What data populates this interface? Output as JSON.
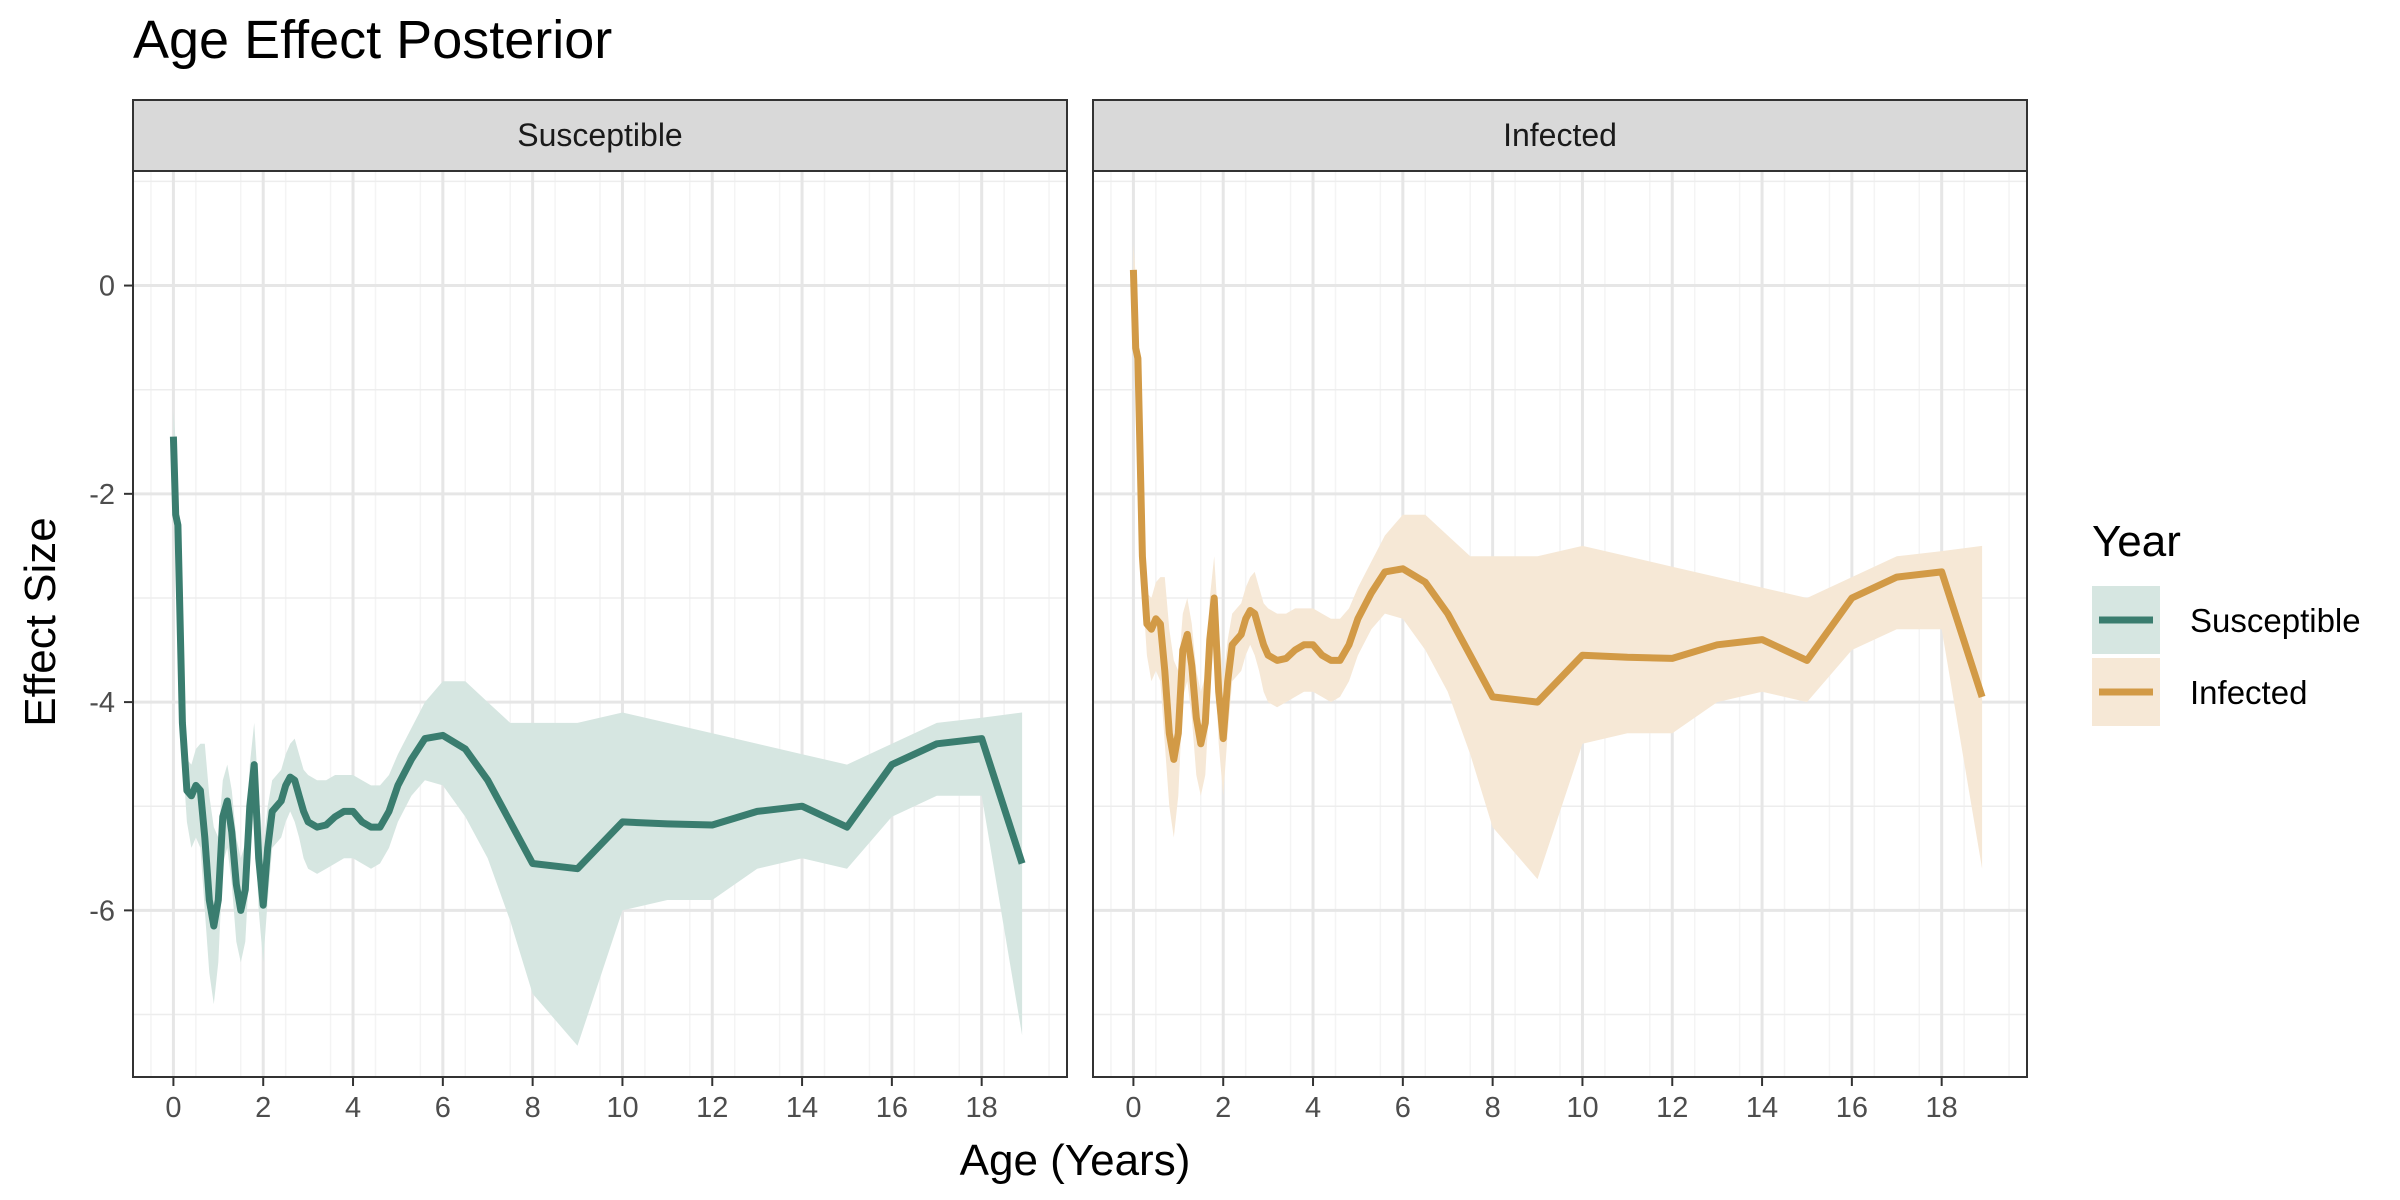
{
  "chart_data": {
    "type": "line",
    "title": "Age Effect Posterior",
    "xlabel": "Age (Years)",
    "ylabel": "Effect Size",
    "xlim": [
      -0.9,
      19.9
    ],
    "ylim": [
      -7.6,
      1.1
    ],
    "x_ticks": [
      "0",
      "2",
      "4",
      "6",
      "8",
      "10",
      "12",
      "14",
      "16",
      "18"
    ],
    "y_ticks": [
      "0",
      "-2",
      "-4",
      "-6"
    ],
    "grid": true,
    "legend": {
      "title": "Year",
      "position": "right",
      "entries": [
        {
          "label": "Susceptible",
          "color": "#3a7d6f"
        },
        {
          "label": "Infected",
          "color": "#d29a46"
        }
      ]
    },
    "panels": [
      {
        "strip": "Susceptible",
        "color": "#3a7d6f",
        "band_color": "#d6e6e1",
        "series": {
          "name": "Susceptible",
          "x": [
            0,
            0.05,
            0.1,
            0.2,
            0.3,
            0.4,
            0.5,
            0.6,
            0.7,
            0.8,
            0.9,
            1.0,
            1.1,
            1.2,
            1.3,
            1.4,
            1.5,
            1.6,
            1.7,
            1.8,
            1.9,
            2.0,
            2.1,
            2.2,
            2.3,
            2.4,
            2.5,
            2.6,
            2.7,
            2.8,
            2.9,
            3.0,
            3.2,
            3.4,
            3.6,
            3.8,
            4.0,
            4.2,
            4.4,
            4.6,
            4.8,
            5.0,
            5.3,
            5.6,
            6.0,
            6.5,
            7.0,
            7.5,
            8.0,
            9.0,
            10.0,
            11.0,
            12.0,
            13.0,
            14.0,
            15.0,
            16.0,
            17.0,
            18.0,
            18.9
          ],
          "y": [
            -1.45,
            -2.2,
            -2.3,
            -4.2,
            -4.85,
            -4.9,
            -4.8,
            -4.85,
            -5.3,
            -5.9,
            -6.15,
            -5.9,
            -5.1,
            -4.95,
            -5.25,
            -5.75,
            -6.0,
            -5.8,
            -5.0,
            -4.6,
            -5.5,
            -5.95,
            -5.4,
            -5.05,
            -5.0,
            -4.95,
            -4.8,
            -4.72,
            -4.75,
            -4.9,
            -5.05,
            -5.15,
            -5.2,
            -5.18,
            -5.1,
            -5.05,
            -5.05,
            -5.15,
            -5.2,
            -5.2,
            -5.05,
            -4.8,
            -4.55,
            -4.35,
            -4.32,
            -4.45,
            -4.75,
            -5.15,
            -5.55,
            -5.6,
            -5.15,
            -5.17,
            -5.18,
            -5.05,
            -5.0,
            -5.2,
            -4.6,
            -4.4,
            -4.35,
            -5.55
          ],
          "band_x": [
            0,
            0.05,
            0.1,
            0.2,
            0.3,
            0.4,
            0.5,
            0.6,
            0.7,
            0.8,
            0.9,
            1.0,
            1.1,
            1.2,
            1.3,
            1.4,
            1.5,
            1.6,
            1.7,
            1.8,
            1.9,
            2.0,
            2.1,
            2.2,
            2.3,
            2.4,
            2.5,
            2.6,
            2.7,
            2.8,
            2.9,
            3.0,
            3.2,
            3.4,
            3.6,
            3.8,
            4.0,
            4.2,
            4.4,
            4.6,
            4.8,
            5.0,
            5.3,
            5.6,
            6.0,
            6.5,
            7.0,
            7.5,
            8.0,
            9.0,
            10.0,
            11.0,
            12.0,
            13.0,
            14.0,
            15.0,
            16.0,
            17.0,
            18.0,
            18.9
          ],
          "upper": [
            -1.2,
            -1.5,
            -1.9,
            -3.9,
            -4.55,
            -4.6,
            -4.45,
            -4.4,
            -4.4,
            -4.9,
            -5.2,
            -5.3,
            -4.75,
            -4.6,
            -4.85,
            -5.3,
            -5.5,
            -5.35,
            -4.6,
            -4.2,
            -4.9,
            -5.4,
            -5.0,
            -4.75,
            -4.7,
            -4.65,
            -4.5,
            -4.4,
            -4.35,
            -4.5,
            -4.65,
            -4.7,
            -4.75,
            -4.75,
            -4.7,
            -4.7,
            -4.7,
            -4.75,
            -4.8,
            -4.8,
            -4.7,
            -4.5,
            -4.25,
            -4.0,
            -3.8,
            -3.8,
            -4.0,
            -4.2,
            -4.2,
            -4.2,
            -4.1,
            -4.2,
            -4.3,
            -4.4,
            -4.5,
            -4.6,
            -4.4,
            -4.2,
            -4.15,
            -4.1
          ],
          "lower": [
            -1.7,
            -2.6,
            -2.7,
            -4.5,
            -5.15,
            -5.4,
            -5.3,
            -5.4,
            -6.0,
            -6.6,
            -6.9,
            -6.5,
            -5.55,
            -5.4,
            -5.75,
            -6.3,
            -6.5,
            -6.3,
            -5.5,
            -5.0,
            -6.0,
            -6.5,
            -5.9,
            -5.4,
            -5.35,
            -5.3,
            -5.15,
            -5.05,
            -5.15,
            -5.3,
            -5.5,
            -5.6,
            -5.65,
            -5.6,
            -5.55,
            -5.5,
            -5.5,
            -5.55,
            -5.6,
            -5.55,
            -5.4,
            -5.15,
            -4.9,
            -4.75,
            -4.8,
            -5.1,
            -5.5,
            -6.1,
            -6.8,
            -7.3,
            -6.0,
            -5.9,
            -5.9,
            -5.6,
            -5.5,
            -5.6,
            -5.1,
            -4.9,
            -4.9,
            -7.2
          ]
        }
      },
      {
        "strip": "Infected",
        "color": "#d29a46",
        "band_color": "#f6e8d6",
        "series": {
          "name": "Infected",
          "x": [
            0,
            0.05,
            0.1,
            0.2,
            0.3,
            0.4,
            0.5,
            0.6,
            0.7,
            0.8,
            0.9,
            1.0,
            1.1,
            1.2,
            1.3,
            1.4,
            1.5,
            1.6,
            1.7,
            1.8,
            1.9,
            2.0,
            2.1,
            2.2,
            2.3,
            2.4,
            2.5,
            2.6,
            2.7,
            2.8,
            2.9,
            3.0,
            3.2,
            3.4,
            3.6,
            3.8,
            4.0,
            4.2,
            4.4,
            4.6,
            4.8,
            5.0,
            5.3,
            5.6,
            6.0,
            6.5,
            7.0,
            7.5,
            8.0,
            9.0,
            10.0,
            11.0,
            12.0,
            13.0,
            14.0,
            15.0,
            16.0,
            17.0,
            18.0,
            18.9
          ],
          "y": [
            0.15,
            -0.6,
            -0.7,
            -2.6,
            -3.25,
            -3.3,
            -3.2,
            -3.25,
            -3.7,
            -4.3,
            -4.55,
            -4.3,
            -3.5,
            -3.35,
            -3.65,
            -4.15,
            -4.4,
            -4.2,
            -3.4,
            -3.0,
            -3.9,
            -4.35,
            -3.8,
            -3.45,
            -3.4,
            -3.35,
            -3.2,
            -3.12,
            -3.15,
            -3.3,
            -3.45,
            -3.55,
            -3.6,
            -3.58,
            -3.5,
            -3.45,
            -3.45,
            -3.55,
            -3.6,
            -3.6,
            -3.45,
            -3.2,
            -2.95,
            -2.75,
            -2.72,
            -2.85,
            -3.15,
            -3.55,
            -3.95,
            -4.0,
            -3.55,
            -3.57,
            -3.58,
            -3.45,
            -3.4,
            -3.6,
            -3.0,
            -2.8,
            -2.75,
            -3.95
          ],
          "band_x": [
            0,
            0.05,
            0.1,
            0.2,
            0.3,
            0.4,
            0.5,
            0.6,
            0.7,
            0.8,
            0.9,
            1.0,
            1.1,
            1.2,
            1.3,
            1.4,
            1.5,
            1.6,
            1.7,
            1.8,
            1.9,
            2.0,
            2.1,
            2.2,
            2.3,
            2.4,
            2.5,
            2.6,
            2.7,
            2.8,
            2.9,
            3.0,
            3.2,
            3.4,
            3.6,
            3.8,
            4.0,
            4.2,
            4.4,
            4.6,
            4.8,
            5.0,
            5.3,
            5.6,
            6.0,
            6.5,
            7.0,
            7.5,
            8.0,
            9.0,
            10.0,
            11.0,
            12.0,
            13.0,
            14.0,
            15.0,
            16.0,
            17.0,
            18.0,
            18.9
          ],
          "upper": [
            0.4,
            0.1,
            -0.3,
            -2.3,
            -2.95,
            -3.0,
            -2.85,
            -2.8,
            -2.8,
            -3.3,
            -3.6,
            -3.7,
            -3.15,
            -3.0,
            -3.25,
            -3.7,
            -3.9,
            -3.75,
            -3.0,
            -2.6,
            -3.3,
            -3.8,
            -3.4,
            -3.15,
            -3.1,
            -3.05,
            -2.9,
            -2.8,
            -2.75,
            -2.9,
            -3.05,
            -3.1,
            -3.15,
            -3.15,
            -3.1,
            -3.1,
            -3.1,
            -3.15,
            -3.2,
            -3.2,
            -3.1,
            -2.9,
            -2.65,
            -2.4,
            -2.2,
            -2.2,
            -2.4,
            -2.6,
            -2.6,
            -2.6,
            -2.5,
            -2.6,
            -2.7,
            -2.8,
            -2.9,
            -3.0,
            -2.8,
            -2.6,
            -2.55,
            -2.5
          ],
          "lower": [
            -0.1,
            -1.0,
            -1.1,
            -2.9,
            -3.55,
            -3.8,
            -3.7,
            -3.8,
            -4.4,
            -5.0,
            -5.3,
            -4.9,
            -3.95,
            -3.8,
            -4.15,
            -4.7,
            -4.9,
            -4.7,
            -3.9,
            -3.4,
            -4.4,
            -4.9,
            -4.3,
            -3.8,
            -3.75,
            -3.7,
            -3.55,
            -3.45,
            -3.55,
            -3.7,
            -3.9,
            -4.0,
            -4.05,
            -4.0,
            -3.95,
            -3.9,
            -3.9,
            -3.95,
            -4.0,
            -3.95,
            -3.8,
            -3.55,
            -3.3,
            -3.15,
            -3.2,
            -3.5,
            -3.9,
            -4.5,
            -5.2,
            -5.7,
            -4.4,
            -4.3,
            -4.3,
            -4.0,
            -3.9,
            -4.0,
            -3.5,
            -3.3,
            -3.3,
            -5.6
          ]
        }
      }
    ]
  }
}
